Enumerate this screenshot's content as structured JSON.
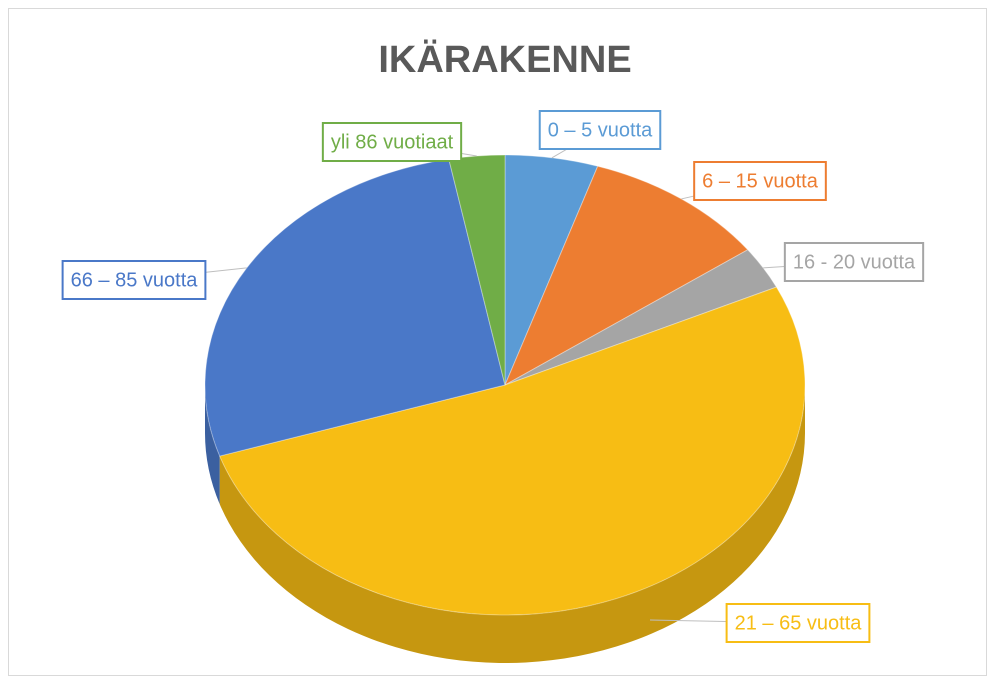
{
  "chart_data": {
    "type": "pie",
    "title": "IKÄRAKENNE",
    "categories": [
      "0 – 5 vuotta",
      "6 – 15 vuotta",
      "16 - 20 vuotta",
      "21 – 65 vuotta",
      "66 – 85 vuotta",
      "yli 86 vuotiaat"
    ],
    "values": [
      5,
      10,
      3,
      52,
      27,
      3
    ],
    "colors": [
      "#5b9bd5",
      "#ed7d31",
      "#a5a5a5",
      "#f7bd14",
      "#4a78c8",
      "#70ad47"
    ]
  }
}
